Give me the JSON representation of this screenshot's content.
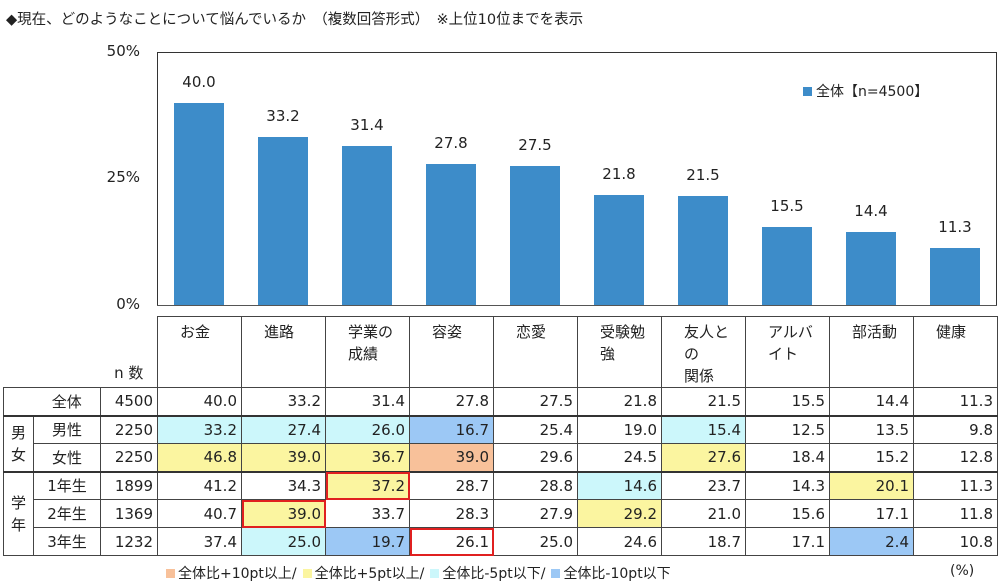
{
  "title": "◆現在、どのようなことについて悩んでいるか　（複数回答形式）　※上位10位までを表示",
  "chart_data": {
    "type": "bar",
    "title": "現在、どのようなことについて悩んでいるか",
    "categories": [
      "お金",
      "進路",
      "学業の成績",
      "容姿",
      "恋愛",
      "受験勉強",
      "友人との関係",
      "アルバイト",
      "部活動",
      "健康"
    ],
    "series": [
      {
        "name": "全体【n=4500】",
        "values": [
          40.0,
          33.2,
          31.4,
          27.8,
          27.5,
          21.8,
          21.5,
          15.5,
          14.4,
          11.3
        ]
      }
    ],
    "value_labels": [
      "40.0",
      "33.2",
      "31.4",
      "27.8",
      "27.5",
      "21.8",
      "21.5",
      "15.5",
      "14.4",
      "11.3"
    ],
    "ylim": [
      0,
      50
    ],
    "yticks": [
      "50%",
      "25%",
      "0%"
    ],
    "legend": "top-right",
    "bar_color": "#3d8cc9"
  },
  "legend_label": "全体【n=4500】",
  "table": {
    "n_header": "n 数",
    "col_headers": [
      "お金",
      "進路",
      "学業の\n成績",
      "容姿",
      "恋愛",
      "受験勉強",
      "友人との\n関係",
      "アルバイト",
      "部活動",
      "健康"
    ],
    "groups": [
      {
        "label": "男\n女",
        "rows": 2
      },
      {
        "label": "学\n年",
        "rows": 3
      }
    ],
    "rows": [
      {
        "label": "全体",
        "n": "4500",
        "values": [
          "40.0",
          "33.2",
          "31.4",
          "27.8",
          "27.5",
          "21.8",
          "21.5",
          "15.5",
          "14.4",
          "11.3"
        ],
        "marks": [
          "",
          "",
          "",
          "",
          "",
          "",
          "",
          "",
          "",
          ""
        ],
        "highlight": []
      },
      {
        "label": "男性",
        "n": "2250",
        "values": [
          "33.2",
          "27.4",
          "26.0",
          "16.7",
          "25.4",
          "19.0",
          "15.4",
          "12.5",
          "13.5",
          "9.8"
        ],
        "marks": [
          "c",
          "c",
          "c",
          "b",
          "",
          "",
          "c",
          "",
          "",
          ""
        ],
        "highlight": []
      },
      {
        "label": "女性",
        "n": "2250",
        "values": [
          "46.8",
          "39.0",
          "36.7",
          "39.0",
          "29.6",
          "24.5",
          "27.6",
          "18.4",
          "15.2",
          "12.8"
        ],
        "marks": [
          "y",
          "y",
          "y",
          "o",
          "",
          "",
          "y",
          "",
          "",
          ""
        ],
        "highlight": []
      },
      {
        "label": "1年生",
        "n": "1899",
        "values": [
          "41.2",
          "34.3",
          "37.2",
          "28.7",
          "28.8",
          "14.6",
          "23.7",
          "14.3",
          "20.1",
          "11.3"
        ],
        "marks": [
          "",
          "",
          "y",
          "",
          "",
          "c",
          "",
          "",
          "y",
          ""
        ],
        "highlight": [
          2
        ]
      },
      {
        "label": "2年生",
        "n": "1369",
        "values": [
          "40.7",
          "39.0",
          "33.7",
          "28.3",
          "27.9",
          "29.2",
          "21.0",
          "15.6",
          "17.1",
          "11.8"
        ],
        "marks": [
          "",
          "y",
          "",
          "",
          "",
          "y",
          "",
          "",
          "",
          ""
        ],
        "highlight": [
          1
        ]
      },
      {
        "label": "3年生",
        "n": "1232",
        "values": [
          "37.4",
          "25.0",
          "19.7",
          "26.1",
          "25.0",
          "24.6",
          "18.7",
          "17.1",
          "2.4",
          "10.8"
        ],
        "marks": [
          "",
          "c",
          "b",
          "",
          "",
          "",
          "",
          "",
          "b",
          ""
        ],
        "highlight": [
          3
        ]
      }
    ]
  },
  "footnote": {
    "items": [
      {
        "color": "#f8c19a",
        "label": "全体比+10pt以上/"
      },
      {
        "color": "#fbf5a0",
        "label": "全体比+5pt以上/"
      },
      {
        "color": "#ccf7fb",
        "label": "全体比-5pt以下/"
      },
      {
        "color": "#9cc8f5",
        "label": "全体比-10pt以下"
      }
    ],
    "unit": "(%)"
  }
}
